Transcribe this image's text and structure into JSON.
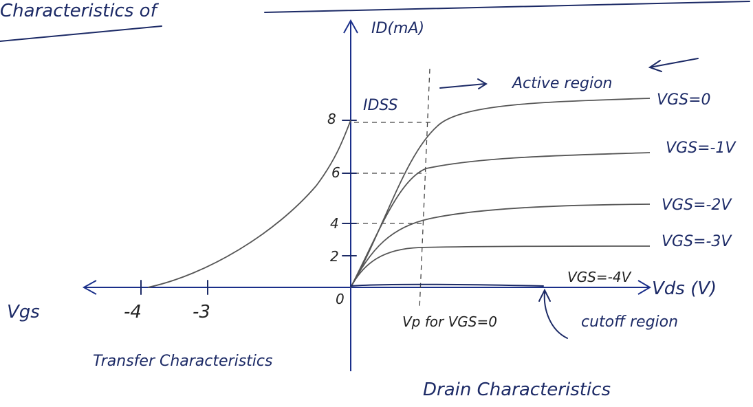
{
  "title": "Characteristics of",
  "axes": {
    "y_label": "ID(mA)",
    "x_label": "Vds (V)",
    "left_label": "Vgs",
    "origin": "0"
  },
  "y_ticks": [
    "8",
    "6",
    "4",
    "2"
  ],
  "x_ticks": [
    "-4",
    "-3"
  ],
  "annotations": {
    "idss": "IDSS",
    "active_region": "Active region",
    "vp": "Vp for VGS=0",
    "cutoff": "cutoff region"
  },
  "curves": [
    "VGS=0",
    "VGS=-1V",
    "VGS=-2V",
    "VGS=-3V",
    "VGS=-4V"
  ],
  "sections": {
    "transfer": "Transfer Characteristics",
    "drain": "Drain Characteristics"
  }
}
